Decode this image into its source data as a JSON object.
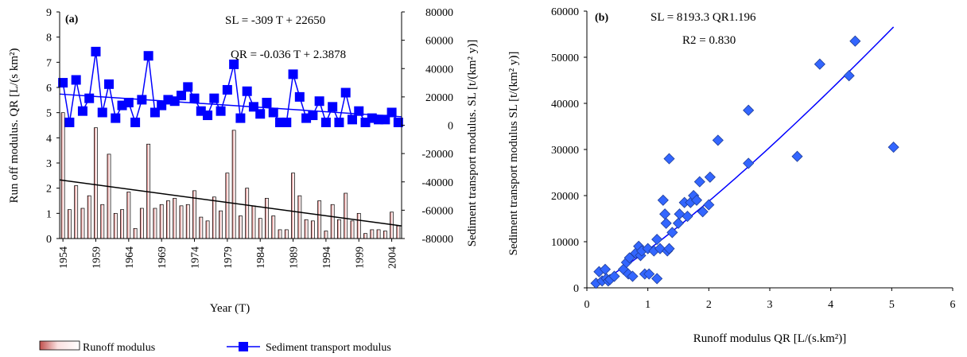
{
  "chart_data": [
    {
      "type": "bar",
      "panel_label": "(a)",
      "xlabel": "Year (T)",
      "ylabel": "Run off modulus. QR [L/(s km²)",
      "y2label": "Sediment transport modulus. SL [t/(km² y)]",
      "ylim": [
        0,
        9
      ],
      "y2lim": [
        -80000,
        80000
      ],
      "yticks": [
        "0",
        "1",
        "2",
        "3",
        "4",
        "5",
        "6",
        "7",
        "8",
        "9"
      ],
      "y2ticks": [
        "-80000",
        "-60000",
        "-40000",
        "-20000",
        "0",
        "20000",
        "40000",
        "60000",
        "80000"
      ],
      "xticks": [
        "1954",
        "1959",
        "1964",
        "1969",
        "1974",
        "1979",
        "1984",
        "1989",
        "1994",
        "1999",
        "2004"
      ],
      "x_start_year": 1954,
      "x_end_year": 2005,
      "annotations": [
        "SL = -309 T + 22650",
        "QR = -0.036 T + 2.3878"
      ],
      "series": [
        {
          "name": "Runoff modulus",
          "kind": "bar",
          "axis": "left",
          "color": "#e9a9a9",
          "values": [
            5.0,
            1.15,
            2.1,
            1.2,
            1.7,
            4.4,
            1.35,
            3.35,
            1.0,
            1.15,
            1.85,
            0.4,
            1.2,
            3.75,
            1.2,
            1.35,
            1.5,
            1.6,
            1.3,
            1.35,
            1.9,
            0.85,
            0.7,
            1.65,
            1.1,
            2.6,
            4.3,
            0.9,
            2.0,
            1.3,
            0.8,
            1.6,
            0.9,
            0.35,
            0.35,
            2.6,
            1.7,
            0.75,
            0.7,
            1.5,
            0.3,
            1.35,
            0.75,
            1.8,
            0.7,
            1.0,
            0.2,
            0.35,
            0.35,
            0.3,
            1.05,
            0.5
          ]
        },
        {
          "name": "Sediment transport modulus",
          "kind": "line",
          "axis": "right",
          "color": "#0000ff",
          "values": [
            30000,
            2000,
            32000,
            10000,
            19000,
            52000,
            9000,
            29000,
            5000,
            14000,
            16000,
            2000,
            18000,
            49000,
            9000,
            14000,
            18000,
            17000,
            21000,
            27000,
            19000,
            10000,
            7000,
            19000,
            10000,
            25000,
            43000,
            5000,
            24000,
            13000,
            8000,
            16000,
            9000,
            2000,
            2000,
            36000,
            20000,
            5000,
            7000,
            17000,
            2000,
            13000,
            2000,
            23000,
            4000,
            10000,
            2000,
            5000,
            4000,
            4000,
            9000,
            2000
          ]
        }
      ],
      "trendlines": [
        {
          "axis": "left",
          "color": "#000000",
          "from": [
            1954,
            2.33
          ],
          "to": [
            2005,
            0.5
          ]
        },
        {
          "axis": "right",
          "color": "#0000ff",
          "from": [
            1954,
            22000
          ],
          "to": [
            2005,
            6000
          ]
        }
      ]
    },
    {
      "type": "scatter",
      "panel_label": "(b)",
      "xlabel": "Runoff modulus QR [L/(s.km²)]",
      "ylabel": "Sediment transport modulus SL [t/(km² y)]",
      "xlim": [
        0,
        6
      ],
      "ylim": [
        0,
        60000
      ],
      "xticks": [
        "0",
        "1",
        "2",
        "3",
        "4",
        "5",
        "6"
      ],
      "yticks": [
        "0",
        "10000",
        "20000",
        "30000",
        "40000",
        "50000",
        "60000"
      ],
      "annotations": [
        "SL = 8193.3 QR1.196",
        "R2 = 0.830"
      ],
      "series": [
        {
          "name": "",
          "color": "#3366ff",
          "points": [
            [
              0.15,
              1000
            ],
            [
              0.2,
              3500
            ],
            [
              0.25,
              1500
            ],
            [
              0.3,
              4000
            ],
            [
              0.32,
              2000
            ],
            [
              0.35,
              1500
            ],
            [
              0.38,
              1800
            ],
            [
              0.45,
              2500
            ],
            [
              0.6,
              4000
            ],
            [
              0.65,
              5500
            ],
            [
              0.68,
              3000
            ],
            [
              0.7,
              6500
            ],
            [
              0.75,
              2500
            ],
            [
              0.8,
              7500
            ],
            [
              0.85,
              9000
            ],
            [
              0.88,
              7000
            ],
            [
              0.9,
              8000
            ],
            [
              0.95,
              3000
            ],
            [
              1.0,
              8500
            ],
            [
              1.02,
              3000
            ],
            [
              1.1,
              8000
            ],
            [
              1.15,
              10500
            ],
            [
              1.15,
              2000
            ],
            [
              1.2,
              8500
            ],
            [
              1.25,
              19000
            ],
            [
              1.28,
              16000
            ],
            [
              1.3,
              14000
            ],
            [
              1.32,
              8000
            ],
            [
              1.35,
              8500
            ],
            [
              1.35,
              28000
            ],
            [
              1.4,
              12000
            ],
            [
              1.5,
              14000
            ],
            [
              1.52,
              16000
            ],
            [
              1.6,
              18500
            ],
            [
              1.65,
              15500
            ],
            [
              1.7,
              18500
            ],
            [
              1.75,
              20000
            ],
            [
              1.8,
              19000
            ],
            [
              1.85,
              23000
            ],
            [
              1.9,
              16500
            ],
            [
              2.0,
              18000
            ],
            [
              2.02,
              24000
            ],
            [
              2.15,
              32000
            ],
            [
              2.65,
              27000
            ],
            [
              2.65,
              38500
            ],
            [
              3.45,
              28500
            ],
            [
              3.82,
              48500
            ],
            [
              4.3,
              46000
            ],
            [
              4.4,
              53500
            ],
            [
              5.03,
              30500
            ]
          ]
        }
      ],
      "fit_curve": {
        "color": "#0000ff",
        "a": 8193.3,
        "b": 1.196,
        "x_range": [
          0.15,
          5.03
        ]
      }
    }
  ],
  "legend": {
    "items": [
      {
        "label": "Runoff modulus",
        "kind": "bar",
        "color": "#e9a9a9"
      },
      {
        "label": "Sediment transport modulus",
        "kind": "line-marker",
        "color": "#0000ff"
      }
    ]
  }
}
